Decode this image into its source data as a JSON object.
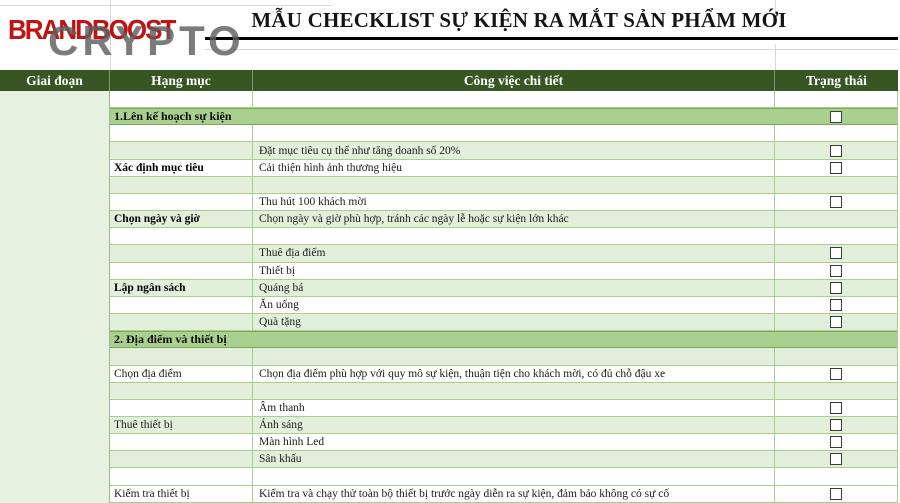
{
  "brand": "BRANDBOOST",
  "watermark": "CRYPTO",
  "title": "MẪU CHECKLIST SỰ KIỆN RA MẮT SẢN PHẨM MỚI",
  "columns": [
    "Giai đoạn",
    "Hạng mục",
    "Công việc chi tiết",
    "Trạng thái"
  ],
  "colors": {
    "header_bg": "#375623",
    "section_band": "#a9d08e",
    "row_alt": "#e2efda",
    "gridline": "#a9cf8f",
    "brand_red": "#c01313",
    "watermark_gray": "#5f5f5f"
  },
  "checkbox_state": "unchecked",
  "rows": [
    {
      "type": "empty",
      "shade": "white"
    },
    {
      "type": "section",
      "label": "1.Lên kế hoạch sự kiện",
      "checkbox": true
    },
    {
      "type": "empty",
      "shade": "white"
    },
    {
      "type": "item",
      "shade": "green",
      "category": "",
      "detail": "Đặt mục tiêu cụ thể như tăng doanh số 20%",
      "checkbox": true
    },
    {
      "type": "item",
      "shade": "white",
      "category": "Xác định mục tiêu",
      "category_bold": true,
      "detail": "Cải thiện hình ảnh thương hiệu",
      "checkbox": true
    },
    {
      "type": "empty",
      "shade": "green"
    },
    {
      "type": "item",
      "shade": "white",
      "category": "",
      "detail": "Thu hút 100 khách mời",
      "checkbox": true
    },
    {
      "type": "item",
      "shade": "green",
      "category": "Chọn ngày và giờ",
      "category_bold": true,
      "detail": "Chọn ngày và giờ phù hợp, tránh các ngày lễ hoặc sự kiện lớn khác",
      "checkbox": false
    },
    {
      "type": "empty",
      "shade": "white"
    },
    {
      "type": "item",
      "shade": "green",
      "category": "",
      "detail": "Thuê địa điểm",
      "checkbox": true
    },
    {
      "type": "item",
      "shade": "white",
      "category": "",
      "detail": "Thiết bị",
      "checkbox": true
    },
    {
      "type": "item",
      "shade": "green",
      "category": "Lập ngân sách",
      "category_bold": true,
      "detail": "Quảng bá",
      "checkbox": true
    },
    {
      "type": "item",
      "shade": "white",
      "category": "",
      "detail": "Ăn uống",
      "checkbox": true
    },
    {
      "type": "item",
      "shade": "green",
      "category": "",
      "detail": "Quà tặng",
      "checkbox": true
    },
    {
      "type": "section",
      "label": "2. Địa điểm và thiết bị",
      "checkbox": false
    },
    {
      "type": "empty",
      "shade": "green"
    },
    {
      "type": "item",
      "shade": "white",
      "category": "Chọn địa điểm",
      "category_bold": false,
      "detail": "Chọn địa điểm phù hợp với quy mô sự kiện, thuận tiện cho khách mời, có đủ chỗ đậu xe",
      "checkbox": true
    },
    {
      "type": "empty",
      "shade": "green"
    },
    {
      "type": "item",
      "shade": "white",
      "category": "",
      "detail": "Âm thanh",
      "checkbox": true
    },
    {
      "type": "item",
      "shade": "green",
      "category": "Thuê thiết bị",
      "category_bold": false,
      "detail": "Ánh sáng",
      "checkbox": true
    },
    {
      "type": "item",
      "shade": "white",
      "category": "",
      "detail": "Màn hình Led",
      "checkbox": true
    },
    {
      "type": "item",
      "shade": "green",
      "category": "",
      "detail": "Sân khấu",
      "checkbox": true
    },
    {
      "type": "empty",
      "shade": "white"
    },
    {
      "type": "item",
      "shade": "white",
      "category": "Kiểm tra thiết bị",
      "category_bold": false,
      "detail": "Kiểm tra và chạy thử toàn bộ thiết bị trước ngày diễn ra sự kiện, đảm bảo không có sự cố",
      "checkbox": true
    }
  ]
}
